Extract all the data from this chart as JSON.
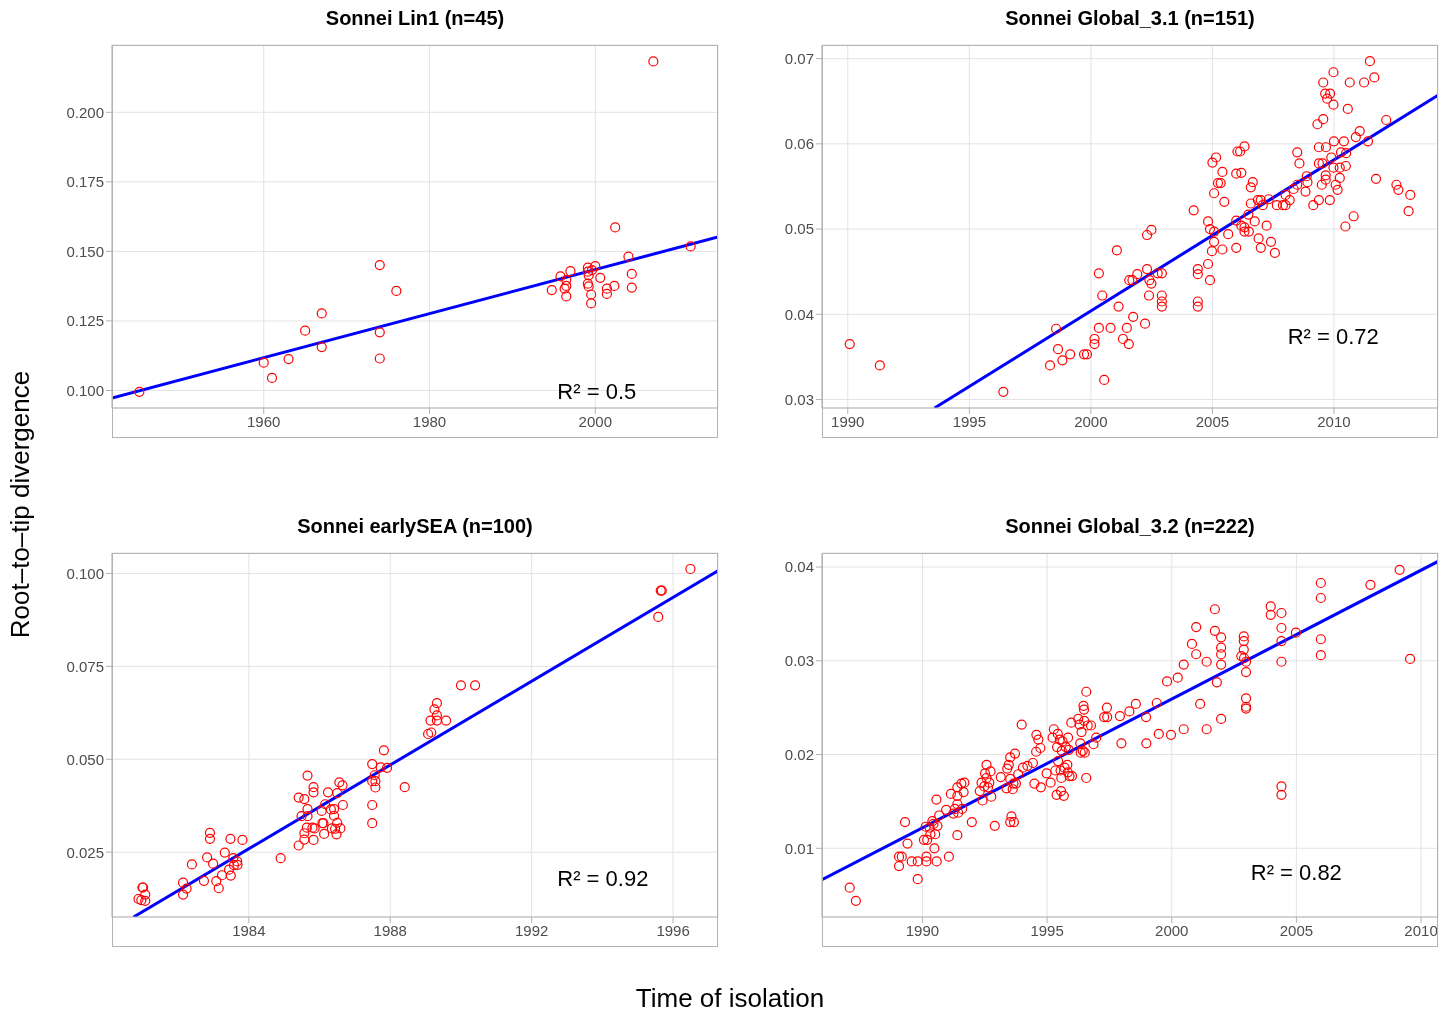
{
  "chart_data": [
    {
      "type": "scatter",
      "title": "Sonnei Lin1 (n=45)",
      "ylabel": "Root–to–tip divergence",
      "xlim": [
        1941.7,
        2014.8
      ],
      "ylim": [
        0.0937,
        0.2242
      ],
      "xticks": [
        1960,
        1980,
        2000
      ],
      "yticks": [
        {
          "value": 0.1,
          "label": "0.100"
        },
        0.125,
        {
          "value": 0.15,
          "label": "0.150"
        },
        0.175,
        {
          "value": 0.2,
          "label": "0.200"
        }
      ],
      "grid": true,
      "annotations": [
        "R² = 0.5"
      ],
      "series": [
        {
          "color": "#ff0000",
          "marker": "circle",
          "x": [
            1945.0,
            1960.0,
            1961.0,
            1963.0,
            1965.0,
            1967.0,
            1967.0,
            1974.0,
            1974.0,
            1974.0,
            1976.0,
            1994.75,
            1995.8,
            1996.5,
            1996.5,
            1996.3,
            1996.5,
            1997.0,
            1999.1,
            1999.1,
            1999.2,
            1999.1,
            1999.2,
            1999.5,
            1999.5,
            1999.6,
            2000.0,
            2000.6,
            2001.4,
            2001.4,
            2002.3,
            2002.4,
            2004.0,
            2004.4,
            2004.4,
            2007.0,
            2011.5
          ],
          "values": [
            0.0995,
            0.11,
            0.1045,
            0.1113,
            0.1215,
            0.1277,
            0.1156,
            0.1451,
            0.1209,
            0.1115,
            0.1358,
            0.1361,
            0.141,
            0.1397,
            0.1376,
            0.1366,
            0.1338,
            0.1429,
            0.1442,
            0.1427,
            0.1414,
            0.1384,
            0.1374,
            0.1345,
            0.1313,
            0.1433,
            0.1447,
            0.1405,
            0.1366,
            0.1347,
            0.1376,
            0.1586,
            0.1481,
            0.1419,
            0.137,
            0.2183,
            0.1518
          ]
        },
        {
          "type": "line",
          "color": "#0000ff",
          "line_style": "solid",
          "x": [
            1941.7,
            2014.8
          ],
          "values": [
            0.0973,
            0.1552
          ]
        }
      ]
    },
    {
      "type": "scatter",
      "title": "Sonnei Global_3.1 (n=151)",
      "xlim": [
        1988.94,
        2014.28
      ],
      "ylim": [
        0.029,
        0.0716
      ],
      "xticks": [
        1990,
        1995,
        2000,
        2005,
        2010
      ],
      "yticks": [
        0.03,
        0.04,
        0.05,
        0.06,
        0.07
      ],
      "grid": true,
      "annotations": [
        "R² = 0.72"
      ],
      "series": [
        {
          "color": "#ff0000",
          "marker": "circle",
          "x": [
            1990.08,
            1991.32,
            1996.4,
            1998.32,
            1998.57,
            1998.65,
            1998.83,
            1999.15,
            1999.72,
            1999.84,
            2000.15,
            2000.15,
            2000.33,
            2000.33,
            2000.47,
            2000.55,
            2000.81,
            2001.07,
            2001.14,
            2001.32,
            2001.48,
            2001.56,
            2001.58,
            2001.74,
            2001.71,
            2001.91,
            2002.23,
            2002.31,
            2002.49,
            2002.31,
            2002.39,
            2002.41,
            2002.49,
            2002.75,
            2002.92,
            2002.92,
            2002.92,
            2002.92,
            2004.23,
            2004.4,
            2004.4,
            2004.4,
            2004.4,
            2004.82,
            2004.9,
            2004.82,
            2004.9,
            2005.0,
            2005.15,
            2005.07,
            2005.07,
            2005.07,
            2004.98,
            2005.23,
            2005.34,
            2005.41,
            2005.41,
            2005.49,
            2005.65,
            2005.98,
            2006.03,
            2006.14,
            2006.19,
            2006.32,
            2005.98,
            2005.98,
            2006.19,
            2006.32,
            2006.32,
            2006.5,
            2006.48,
            2006.58,
            2006.58,
            2006.66,
            2006.74,
            2006.9,
            2006.99,
            2006.87,
            2007.07,
            2006.99,
            2007.23,
            2007.32,
            2007.41,
            2007.57,
            2007.65,
            2007.9,
            2008.01,
            2008.01,
            2008.18,
            2008.34,
            2008.49,
            2008.49,
            2008.58,
            2008.83,
            2008.91,
            2008.88,
            2009.15,
            2009.32,
            2009.38,
            2009.38,
            2009.38,
            2009.5,
            2009.53,
            2009.56,
            2009.56,
            2009.64,
            2009.72,
            2009.84,
            2009.66,
            2009.66,
            2009.67,
            2009.83,
            2009.89,
            2009.98,
            2009.98,
            2010.0,
            2009.98,
            2010.07,
            2010.15,
            2010.24,
            2010.24,
            2010.29,
            2010.41,
            2010.49,
            2010.47,
            2010.5,
            2010.57,
            2010.65,
            2010.81,
            2010.9,
            2011.06,
            2011.24,
            2011.4,
            2011.48,
            2011.66,
            2011.73,
            2012.15,
            2012.57,
            2012.65,
            2013.07,
            2013.14
          ],
          "values": [
            0.0365,
            0.034,
            0.0309,
            0.034,
            0.0383,
            0.0359,
            0.0346,
            0.0353,
            0.0353,
            0.0353,
            0.0371,
            0.0365,
            0.0384,
            0.0448,
            0.0422,
            0.0323,
            0.0384,
            0.0475,
            0.0409,
            0.0371,
            0.0384,
            0.0365,
            0.044,
            0.0397,
            0.044,
            0.0447,
            0.0389,
            0.0493,
            0.0499,
            0.0453,
            0.0422,
            0.044,
            0.0436,
            0.0448,
            0.0448,
            0.0422,
            0.0415,
            0.0409,
            0.0522,
            0.0453,
            0.0447,
            0.0415,
            0.0409,
            0.0459,
            0.044,
            0.0509,
            0.05,
            0.0578,
            0.0584,
            0.0542,
            0.0497,
            0.0485,
            0.0474,
            0.0554,
            0.0554,
            0.0567,
            0.0476,
            0.0532,
            0.0494,
            0.0565,
            0.0591,
            0.0591,
            0.0566,
            0.0597,
            0.051,
            0.0478,
            0.0504,
            0.0502,
            0.0497,
            0.0497,
            0.0517,
            0.053,
            0.0549,
            0.0555,
            0.0509,
            0.0489,
            0.0478,
            0.0534,
            0.0528,
            0.0534,
            0.0504,
            0.0535,
            0.0485,
            0.0472,
            0.0528,
            0.0528,
            0.0528,
            0.054,
            0.0534,
            0.0547,
            0.0552,
            0.059,
            0.0577,
            0.0544,
            0.0555,
            0.0562,
            0.0528,
            0.0623,
            0.0534,
            0.0577,
            0.0596,
            0.0552,
            0.0577,
            0.0629,
            0.0672,
            0.0659,
            0.0653,
            0.0659,
            0.0558,
            0.0563,
            0.0596,
            0.0534,
            0.0584,
            0.0684,
            0.0646,
            0.0603,
            0.0572,
            0.0552,
            0.0546,
            0.056,
            0.0572,
            0.059,
            0.0603,
            0.0574,
            0.0503,
            0.0589,
            0.0641,
            0.0672,
            0.0515,
            0.0608,
            0.0615,
            0.0672,
            0.0603,
            0.0697,
            0.0678,
            0.0559,
            0.0628,
            0.0552,
            0.0546,
            0.0521,
            0.054
          ]
        },
        {
          "type": "line",
          "color": "#0000ff",
          "line_style": "solid",
          "x": [
            1993.57,
            2014.28
          ],
          "values": [
            0.029,
            0.0657
          ]
        }
      ]
    },
    {
      "type": "scatter",
      "title": "Sonnei earlySEA (n=100)",
      "xlabel": "Time of isolation",
      "xlim": [
        1980.13,
        1997.27
      ],
      "ylim": [
        0.00756,
        0.1055
      ],
      "xticks": [
        1984,
        1988,
        1992,
        1996
      ],
      "yticks": [
        0.025,
        {
          "value": 0.05,
          "label": "0.050"
        },
        0.075,
        {
          "value": 0.1,
          "label": "0.100"
        }
      ],
      "grid": true,
      "annotations": [
        "R² = 0.92"
      ],
      "series": [
        {
          "color": "#ff0000",
          "marker": "circle",
          "x": [
            1980.88,
            1980.96,
            1980.99,
            1981.01,
            1981.07,
            1981.07,
            1982.14,
            1982.14,
            1982.24,
            1982.39,
            1982.73,
            1982.82,
            1982.9,
            1982.9,
            1982.99,
            1983.08,
            1983.15,
            1983.24,
            1983.32,
            1983.44,
            1983.48,
            1983.49,
            1983.56,
            1983.58,
            1983.67,
            1983.68,
            1983.82,
            1984.9,
            1985.41,
            1985.41,
            1985.49,
            1985.57,
            1985.57,
            1985.57,
            1985.64,
            1985.66,
            1985.66,
            1985.66,
            1985.8,
            1985.83,
            1985.83,
            1985.83,
            1985.86,
            1986.06,
            1986.08,
            1986.11,
            1986.13,
            1986.16,
            1986.24,
            1986.32,
            1986.35,
            1986.41,
            1986.41,
            1986.44,
            1986.48,
            1986.5,
            1986.5,
            1986.56,
            1986.59,
            1986.65,
            1986.66,
            1987.49,
            1987.49,
            1987.49,
            1987.49,
            1987.56,
            1987.58,
            1987.58,
            1987.73,
            1987.82,
            1987.91,
            1988.41,
            1989.07,
            1989.16,
            1989.14,
            1989.25,
            1989.32,
            1989.32,
            1989.32,
            1989.58,
            1990.0,
            1990.4,
            1995.58,
            1995.65,
            1995.68,
            1996.49
          ],
          "values": [
            0.0124,
            0.0121,
            0.0155,
            0.0155,
            0.0136,
            0.0119,
            0.0168,
            0.0136,
            0.0152,
            0.0217,
            0.0173,
            0.0236,
            0.0302,
            0.0286,
            0.0219,
            0.0172,
            0.0153,
            0.0188,
            0.0249,
            0.0203,
            0.0286,
            0.0187,
            0.0234,
            0.0215,
            0.0225,
            0.0216,
            0.0283,
            0.0234,
            0.0268,
            0.0397,
            0.0347,
            0.0301,
            0.0284,
            0.0393,
            0.0316,
            0.0366,
            0.0456,
            0.0347,
            0.0316,
            0.0283,
            0.0411,
            0.0425,
            0.0314,
            0.0361,
            0.0328,
            0.0328,
            0.0299,
            0.0379,
            0.0411,
            0.0365,
            0.0314,
            0.0348,
            0.0366,
            0.0313,
            0.0298,
            0.0329,
            0.0409,
            0.0438,
            0.0314,
            0.043,
            0.0377,
            0.0487,
            0.0441,
            0.0377,
            0.0328,
            0.0457,
            0.0441,
            0.0424,
            0.0478,
            0.0524,
            0.0477,
            0.0425,
            0.0568,
            0.0572,
            0.0604,
            0.0634,
            0.0651,
            0.0618,
            0.0604,
            0.0604,
            0.0699,
            0.0699,
            0.0883,
            0.0954,
            0.0954,
            0.1012
          ]
        },
        {
          "type": "line",
          "color": "#0000ff",
          "line_style": "solid",
          "x": [
            1980.74,
            1997.27
          ],
          "values": [
            0.00756,
            0.1007
          ]
        }
      ]
    },
    {
      "type": "scatter",
      "title": "Sonnei Global_3.2 (n=222)",
      "xlim": [
        1985.97,
        2010.68
      ],
      "ylim": [
        0.00267,
        0.0415
      ],
      "xticks": [
        1990,
        1995,
        2000,
        2005,
        2010
      ],
      "yticks": [
        0.01,
        0.02,
        0.03,
        0.04
      ],
      "grid": true,
      "annotations": [
        "R² = 0.82"
      ],
      "series": [
        {
          "color": "#ff0000",
          "marker": "circle",
          "x": [
            1987.08,
            1987.33,
            1989.06,
            1989.06,
            1989.17,
            1989.3,
            1989.4,
            1989.57,
            1989.81,
            1989.81,
            1990.06,
            1990.13,
            1990.16,
            1990.16,
            1990.19,
            1990.29,
            1990.32,
            1990.4,
            1990.44,
            1990.48,
            1990.51,
            1990.57,
            1990.56,
            1990.6,
            1990.67,
            1990.95,
            1991.06,
            1991.14,
            1991.24,
            1991.3,
            1991.4,
            1991.4,
            1991.4,
            1991.4,
            1991.43,
            1991.56,
            1991.59,
            1991.65,
            1991.68,
            1991.98,
            1992.3,
            1992.37,
            1992.41,
            1992.48,
            1992.51,
            1992.57,
            1992.57,
            1992.63,
            1992.68,
            1992.73,
            1992.76,
            1992.9,
            1993.14,
            1993.37,
            1993.4,
            1993.46,
            1993.52,
            1993.52,
            1993.52,
            1993.57,
            1993.62,
            1993.65,
            1993.67,
            1993.71,
            1993.75,
            1993.84,
            1993.98,
            1994.03,
            1994.21,
            1994.43,
            1994.49,
            1994.56,
            1994.57,
            1994.65,
            1994.73,
            1994.75,
            1994.98,
            1995.14,
            1995.22,
            1995.27,
            1995.33,
            1995.38,
            1995.4,
            1995.43,
            1995.44,
            1995.51,
            1995.54,
            1995.56,
            1995.57,
            1995.59,
            1995.62,
            1995.67,
            1995.7,
            1995.75,
            1995.81,
            1995.83,
            1995.84,
            1995.87,
            1995.9,
            1995.97,
            1996.0,
            1996.25,
            1996.3,
            1996.33,
            1996.35,
            1996.38,
            1996.43,
            1996.46,
            1996.48,
            1996.49,
            1996.51,
            1996.57,
            1996.57,
            1996.63,
            1996.76,
            1996.86,
            1996.97,
            1997.29,
            1997.4,
            1997.41,
            1997.92,
            1997.98,
            1998.3,
            1998.56,
            1998.97,
            1998.98,
            1999.4,
            1999.48,
            1999.81,
            1999.97,
            2000.24,
            2000.48,
            2000.48,
            2000.81,
            2000.98,
            2000.98,
            2001.14,
            2001.4,
            2001.4,
            2001.73,
            2001.73,
            2001.81,
            2001.98,
            2001.98,
            2001.98,
            2001.98,
            2001.98,
            2002.79,
            2002.89,
            2002.89,
            2002.89,
            2002.9,
            2002.98,
            2002.98,
            2002.98,
            2002.98,
            2002.98,
            2003.97,
            2003.97,
            2004.4,
            2004.4,
            2004.4,
            2004.4,
            2004.4,
            2004.4,
            2004.98,
            2005.98,
            2005.98,
            2005.98,
            2005.98,
            2007.97,
            2009.14,
            2009.56
          ],
          "values": [
            0.0058,
            0.0044,
            0.0091,
            0.0081,
            0.0091,
            0.0128,
            0.0105,
            0.0086,
            0.0086,
            0.0067,
            0.0109,
            0.0123,
            0.0091,
            0.0086,
            0.0109,
            0.0122,
            0.0115,
            0.0129,
            0.0126,
            0.01,
            0.0115,
            0.0086,
            0.0152,
            0.0124,
            0.0135,
            0.0141,
            0.0091,
            0.0158,
            0.0137,
            0.0142,
            0.0165,
            0.0156,
            0.0147,
            0.0114,
            0.0138,
            0.0169,
            0.0142,
            0.016,
            0.017,
            0.0128,
            0.0161,
            0.017,
            0.0151,
            0.0166,
            0.018,
            0.0189,
            0.0175,
            0.0165,
            0.017,
            0.0182,
            0.0155,
            0.0124,
            0.0176,
            0.0164,
            0.0185,
            0.0189,
            0.0197,
            0.0174,
            0.0128,
            0.0134,
            0.0163,
            0.0169,
            0.0128,
            0.0201,
            0.0169,
            0.0179,
            0.0232,
            0.0186,
            0.0188,
            0.0191,
            0.0169,
            0.0203,
            0.0221,
            0.0216,
            0.0207,
            0.0165,
            0.018,
            0.017,
            0.0218,
            0.0227,
            0.0183,
            0.0157,
            0.0208,
            0.0222,
            0.0193,
            0.0216,
            0.0183,
            0.0161,
            0.0175,
            0.0204,
            0.0214,
            0.0156,
            0.0186,
            0.0208,
            0.0189,
            0.0181,
            0.0218,
            0.0205,
            0.0177,
            0.0234,
            0.0177,
            0.0238,
            0.0232,
            0.0212,
            0.0202,
            0.0224,
            0.0204,
            0.0252,
            0.0248,
            0.0236,
            0.0202,
            0.0267,
            0.0175,
            0.0231,
            0.0231,
            0.0211,
            0.0218,
            0.024,
            0.025,
            0.024,
            0.0241,
            0.0212,
            0.0246,
            0.0254,
            0.024,
            0.0212,
            0.0255,
            0.0222,
            0.0278,
            0.0221,
            0.0282,
            0.0296,
            0.0227,
            0.0318,
            0.0336,
            0.0307,
            0.0254,
            0.0299,
            0.0227,
            0.0355,
            0.0332,
            0.0277,
            0.0325,
            0.0314,
            0.0307,
            0.0296,
            0.0238,
            0.0305,
            0.0326,
            0.0321,
            0.0312,
            0.0303,
            0.0299,
            0.0288,
            0.026,
            0.0251,
            0.0249,
            0.0358,
            0.0349,
            0.0351,
            0.0335,
            0.0321,
            0.0299,
            0.0166,
            0.0157,
            0.033,
            0.0383,
            0.0367,
            0.0323,
            0.0306,
            0.0381,
            0.0397,
            0.0302
          ]
        },
        {
          "type": "line",
          "color": "#0000ff",
          "line_style": "solid",
          "x": [
            1985.97,
            2010.68
          ],
          "values": [
            0.00664,
            0.0406
          ]
        }
      ]
    }
  ]
}
